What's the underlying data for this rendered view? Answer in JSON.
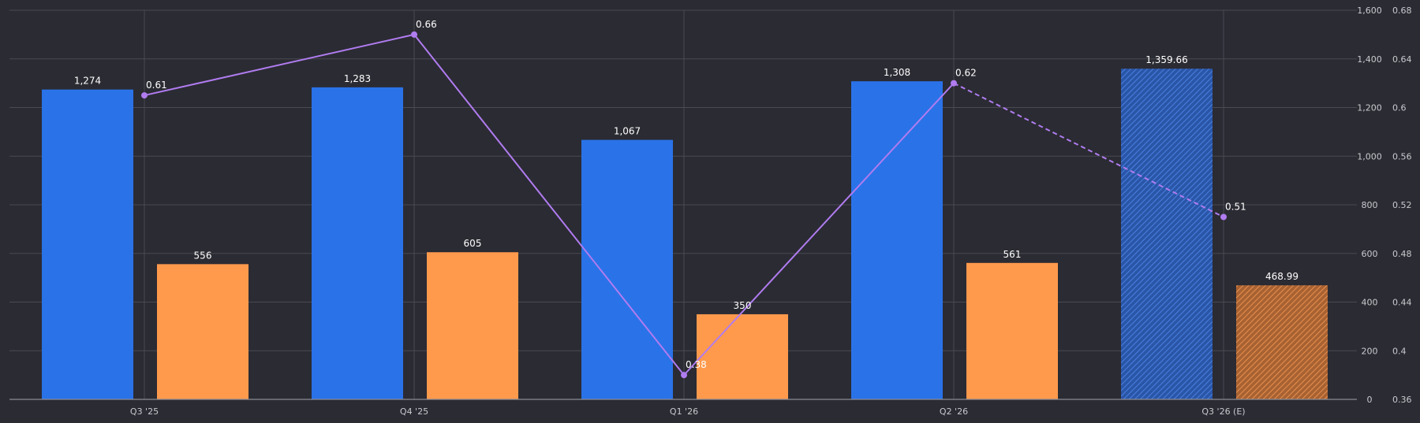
{
  "chart_data": {
    "type": "bar",
    "categories": [
      "Q3 '25",
      "Q4 '25",
      "Q1 '26",
      "Q2 '26",
      "Q3 '26 (E)"
    ],
    "series": [
      {
        "axis": "left",
        "kind": "bar",
        "color": "#2a72e8",
        "values": [
          1274,
          1283,
          1067,
          1308,
          1359.66
        ],
        "labels": [
          "1,274",
          "1,283",
          "1,067",
          "1,308",
          "1,359.66"
        ],
        "estimated": [
          false,
          false,
          false,
          false,
          true
        ]
      },
      {
        "axis": "left",
        "kind": "bar",
        "color": "#ff9a4d",
        "values": [
          556,
          605,
          350,
          561,
          468.99
        ],
        "labels": [
          "556",
          "605",
          "350",
          "561",
          "468.99"
        ],
        "estimated": [
          false,
          false,
          false,
          false,
          true
        ]
      },
      {
        "axis": "right",
        "kind": "line",
        "color": "#b07cf0",
        "values": [
          0.61,
          0.66,
          0.38,
          0.62,
          0.51
        ],
        "labels": [
          "0.61",
          "0.66",
          "0.38",
          "0.62",
          "0.51"
        ],
        "estimated": [
          false,
          false,
          false,
          false,
          true
        ]
      }
    ],
    "y_left": {
      "lim": [
        0,
        1600
      ],
      "ticks": [
        0,
        200,
        400,
        600,
        800,
        1000,
        1200,
        1400,
        1600
      ],
      "tick_labels": [
        "0",
        "200",
        "400",
        "600",
        "800",
        "1,000",
        "1,200",
        "1,400",
        "1,600"
      ]
    },
    "y_right": {
      "lim": [
        0.36,
        0.68
      ],
      "ticks": [
        0.36,
        0.4,
        0.44,
        0.48,
        0.52,
        0.56,
        0.6,
        0.64,
        0.68
      ],
      "tick_labels": [
        "0.36",
        "0.4",
        "0.44",
        "0.48",
        "0.52",
        "0.56",
        "0.6",
        "0.64",
        "0.68"
      ]
    },
    "grid": true,
    "legend": "none",
    "background": "#2b2b33"
  }
}
